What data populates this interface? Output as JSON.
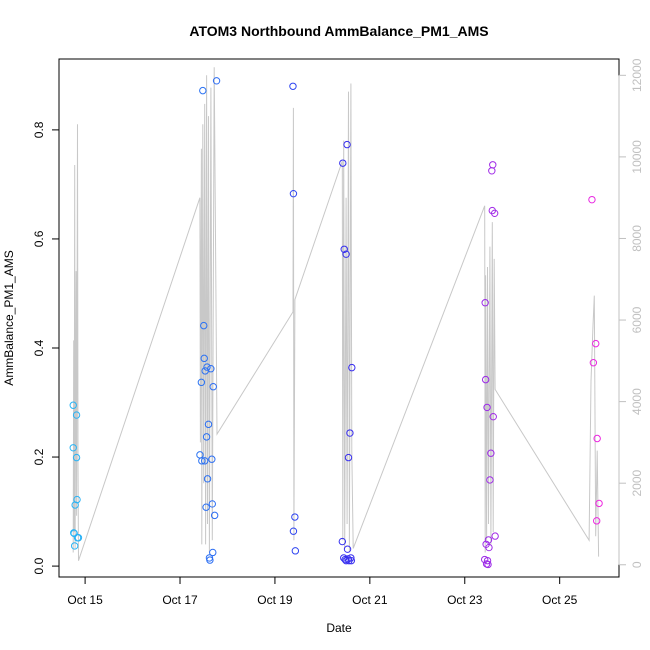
{
  "chart_data": {
    "type": "scatter",
    "title": "ATOM3 Northbound AmmBalance_PM1_AMS",
    "xlabel": "Date",
    "ylabel": "AmmBalance_PM1_AMS",
    "xlim": [
      14.45,
      26.25
    ],
    "ylim": [
      -0.02,
      0.93
    ],
    "y2lim": [
      -300,
      12400
    ],
    "x_ticks": [
      {
        "value": 15,
        "label": "Oct 15"
      },
      {
        "value": 17,
        "label": "Oct 17"
      },
      {
        "value": 19,
        "label": "Oct 19"
      },
      {
        "value": 21,
        "label": "Oct 21"
      },
      {
        "value": 23,
        "label": "Oct 23"
      },
      {
        "value": 25,
        "label": "Oct 25"
      }
    ],
    "y_ticks": [
      0.0,
      0.2,
      0.4,
      0.6,
      0.8
    ],
    "y_tick_labels": [
      "0.0",
      "0.2",
      "0.4",
      "0.6",
      "0.8"
    ],
    "y2_ticks": [
      0,
      2000,
      4000,
      6000,
      8000,
      10000,
      12000
    ],
    "y2_tick_labels": [
      "0",
      "2000",
      "4000",
      "6000",
      "8000",
      "10000",
      "12000"
    ],
    "colors": {
      "line": "#c8c8c8",
      "point_start": "#29b6f6",
      "point_mid": "#2f2ff0",
      "point_end": "#f028e0"
    },
    "points": [
      {
        "x": 14.75,
        "y": 0.295
      },
      {
        "x": 14.75,
        "y": 0.217
      },
      {
        "x": 14.76,
        "y": 0.061
      },
      {
        "x": 14.77,
        "y": 0.06
      },
      {
        "x": 14.78,
        "y": 0.037
      },
      {
        "x": 14.79,
        "y": 0.112
      },
      {
        "x": 14.82,
        "y": 0.277
      },
      {
        "x": 14.82,
        "y": 0.199
      },
      {
        "x": 14.83,
        "y": 0.122
      },
      {
        "x": 14.84,
        "y": 0.052
      },
      {
        "x": 14.86,
        "y": 0.052
      },
      {
        "x": 17.42,
        "y": 0.204
      },
      {
        "x": 17.45,
        "y": 0.337
      },
      {
        "x": 17.46,
        "y": 0.193
      },
      {
        "x": 17.48,
        "y": 0.872
      },
      {
        "x": 17.5,
        "y": 0.441
      },
      {
        "x": 17.51,
        "y": 0.381
      },
      {
        "x": 17.52,
        "y": 0.193
      },
      {
        "x": 17.53,
        "y": 0.358
      },
      {
        "x": 17.55,
        "y": 0.108
      },
      {
        "x": 17.56,
        "y": 0.237
      },
      {
        "x": 17.57,
        "y": 0.365
      },
      {
        "x": 17.58,
        "y": 0.16
      },
      {
        "x": 17.6,
        "y": 0.26
      },
      {
        "x": 17.62,
        "y": 0.015
      },
      {
        "x": 17.63,
        "y": 0.011
      },
      {
        "x": 17.65,
        "y": 0.362
      },
      {
        "x": 17.67,
        "y": 0.196
      },
      {
        "x": 17.68,
        "y": 0.114
      },
      {
        "x": 17.69,
        "y": 0.025
      },
      {
        "x": 17.7,
        "y": 0.329
      },
      {
        "x": 17.73,
        "y": 0.093
      },
      {
        "x": 17.77,
        "y": 0.89
      },
      {
        "x": 19.38,
        "y": 0.88
      },
      {
        "x": 19.39,
        "y": 0.683
      },
      {
        "x": 19.39,
        "y": 0.064
      },
      {
        "x": 19.42,
        "y": 0.09
      },
      {
        "x": 19.43,
        "y": 0.028
      },
      {
        "x": 20.42,
        "y": 0.045
      },
      {
        "x": 20.43,
        "y": 0.739
      },
      {
        "x": 20.45,
        "y": 0.015
      },
      {
        "x": 20.46,
        "y": 0.581
      },
      {
        "x": 20.48,
        "y": 0.012
      },
      {
        "x": 20.5,
        "y": 0.572
      },
      {
        "x": 20.5,
        "y": 0.01
      },
      {
        "x": 20.52,
        "y": 0.773
      },
      {
        "x": 20.53,
        "y": 0.031
      },
      {
        "x": 20.54,
        "y": 0.013
      },
      {
        "x": 20.55,
        "y": 0.199
      },
      {
        "x": 20.56,
        "y": 0.01
      },
      {
        "x": 20.58,
        "y": 0.244
      },
      {
        "x": 20.6,
        "y": 0.015
      },
      {
        "x": 20.61,
        "y": 0.01
      },
      {
        "x": 20.62,
        "y": 0.364
      },
      {
        "x": 23.42,
        "y": 0.012
      },
      {
        "x": 23.43,
        "y": 0.483
      },
      {
        "x": 23.44,
        "y": 0.342
      },
      {
        "x": 23.45,
        "y": 0.04
      },
      {
        "x": 23.46,
        "y": 0.004
      },
      {
        "x": 23.47,
        "y": 0.291
      },
      {
        "x": 23.48,
        "y": 0.01
      },
      {
        "x": 23.49,
        "y": 0.003
      },
      {
        "x": 23.5,
        "y": 0.048
      },
      {
        "x": 23.51,
        "y": 0.034
      },
      {
        "x": 23.53,
        "y": 0.158
      },
      {
        "x": 23.55,
        "y": 0.207
      },
      {
        "x": 23.57,
        "y": 0.725
      },
      {
        "x": 23.58,
        "y": 0.652
      },
      {
        "x": 23.59,
        "y": 0.736
      },
      {
        "x": 23.6,
        "y": 0.274
      },
      {
        "x": 23.63,
        "y": 0.647
      },
      {
        "x": 23.64,
        "y": 0.055
      },
      {
        "x": 25.68,
        "y": 0.672
      },
      {
        "x": 25.71,
        "y": 0.373
      },
      {
        "x": 25.76,
        "y": 0.408
      },
      {
        "x": 25.78,
        "y": 0.083
      },
      {
        "x": 25.79,
        "y": 0.234
      },
      {
        "x": 25.83,
        "y": 0.115
      }
    ],
    "line_series_right_axis": [
      {
        "x": 14.75,
        "y": 300
      },
      {
        "x": 14.76,
        "y": 5500
      },
      {
        "x": 14.77,
        "y": 800
      },
      {
        "x": 14.78,
        "y": 9800
      },
      {
        "x": 14.79,
        "y": 400
      },
      {
        "x": 14.81,
        "y": 7200
      },
      {
        "x": 14.82,
        "y": 1200
      },
      {
        "x": 14.84,
        "y": 10800
      },
      {
        "x": 14.85,
        "y": 2500
      },
      {
        "x": 14.86,
        "y": 100
      },
      {
        "x": 17.42,
        "y": 9000
      },
      {
        "x": 17.43,
        "y": 3000
      },
      {
        "x": 17.45,
        "y": 10200
      },
      {
        "x": 17.46,
        "y": 500
      },
      {
        "x": 17.48,
        "y": 10800
      },
      {
        "x": 17.5,
        "y": 2000
      },
      {
        "x": 17.52,
        "y": 11300
      },
      {
        "x": 17.54,
        "y": 500
      },
      {
        "x": 17.56,
        "y": 12000
      },
      {
        "x": 17.58,
        "y": 1000
      },
      {
        "x": 17.6,
        "y": 11000
      },
      {
        "x": 17.62,
        "y": 300
      },
      {
        "x": 17.65,
        "y": 11700
      },
      {
        "x": 17.68,
        "y": 600
      },
      {
        "x": 17.72,
        "y": 12200
      },
      {
        "x": 17.78,
        "y": 3200
      },
      {
        "x": 19.38,
        "y": 6200
      },
      {
        "x": 19.39,
        "y": 11200
      },
      {
        "x": 19.4,
        "y": 600
      },
      {
        "x": 19.42,
        "y": 6500
      },
      {
        "x": 20.42,
        "y": 9900
      },
      {
        "x": 20.43,
        "y": 600
      },
      {
        "x": 20.45,
        "y": 10400
      },
      {
        "x": 20.47,
        "y": 400
      },
      {
        "x": 20.5,
        "y": 9000
      },
      {
        "x": 20.52,
        "y": 1000
      },
      {
        "x": 20.55,
        "y": 11600
      },
      {
        "x": 20.57,
        "y": 300
      },
      {
        "x": 20.6,
        "y": 11800
      },
      {
        "x": 20.62,
        "y": 2800
      },
      {
        "x": 20.65,
        "y": 400
      },
      {
        "x": 23.42,
        "y": 8800
      },
      {
        "x": 23.43,
        "y": 300
      },
      {
        "x": 23.44,
        "y": 7100
      },
      {
        "x": 23.46,
        "y": 600
      },
      {
        "x": 23.48,
        "y": 7300
      },
      {
        "x": 23.5,
        "y": 1000
      },
      {
        "x": 23.53,
        "y": 7800
      },
      {
        "x": 23.55,
        "y": 500
      },
      {
        "x": 23.58,
        "y": 8400
      },
      {
        "x": 23.6,
        "y": 800
      },
      {
        "x": 23.62,
        "y": 7500
      },
      {
        "x": 23.64,
        "y": 4300
      },
      {
        "x": 25.62,
        "y": 600
      },
      {
        "x": 25.66,
        "y": 4500
      },
      {
        "x": 25.7,
        "y": 5800
      },
      {
        "x": 25.73,
        "y": 6600
      },
      {
        "x": 25.76,
        "y": 700
      },
      {
        "x": 25.79,
        "y": 2800
      },
      {
        "x": 25.82,
        "y": 200
      }
    ]
  }
}
